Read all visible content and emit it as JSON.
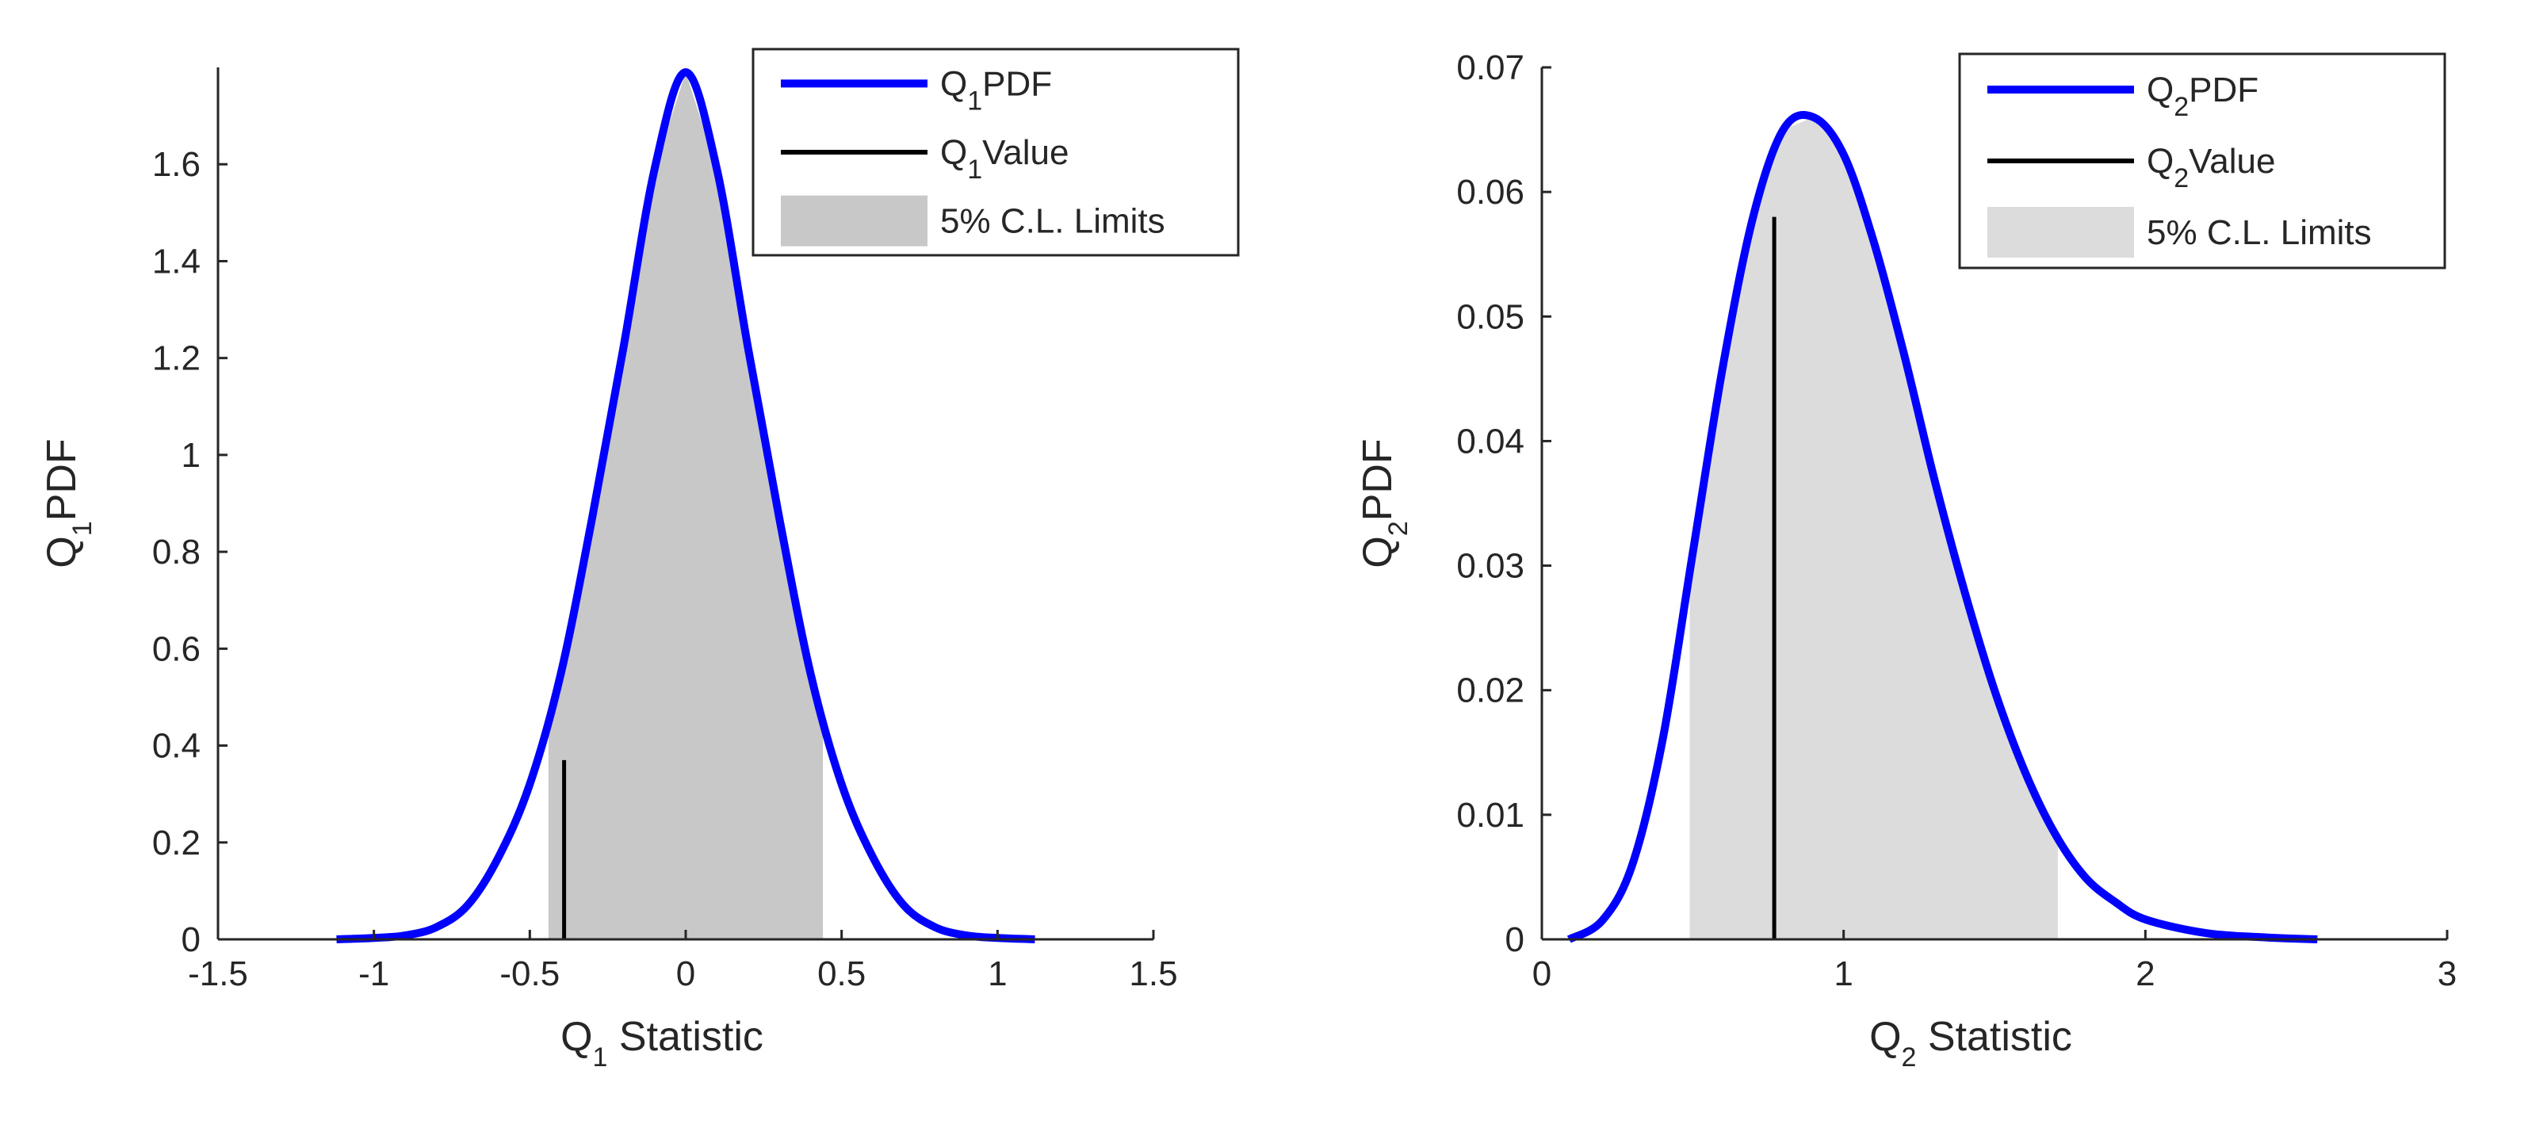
{
  "chart_data": [
    {
      "type": "line",
      "id": "q1",
      "xlabel": {
        "main": "Q",
        "sub": "1",
        "rest": " Statistic"
      },
      "ylabel": {
        "main": "Q",
        "sub": "1",
        "rest": "PDF"
      },
      "xlim": [
        -1.5,
        1.5
      ],
      "ylim": [
        0,
        1.8
      ],
      "xticks": [
        -1.5,
        -1,
        -0.5,
        0,
        0.5,
        1,
        1.5
      ],
      "xtick_labels": [
        "-1.5",
        "-1",
        "-0.5",
        "0",
        "0.5",
        "1",
        "1.5"
      ],
      "yticks": [
        0,
        0.2,
        0.4,
        0.6,
        0.8,
        1,
        1.2,
        1.4,
        1.6
      ],
      "ytick_labels": [
        "0",
        "0.2",
        "0.4",
        "0.6",
        "0.8",
        "1",
        "1.2",
        "1.4",
        "1.6"
      ],
      "pdf": {
        "x": [
          -1.12,
          -1.0,
          -0.9,
          -0.8,
          -0.7,
          -0.6,
          -0.5,
          -0.4,
          -0.3,
          -0.2,
          -0.1,
          0,
          0.1,
          0.2,
          0.3,
          0.4,
          0.5,
          0.6,
          0.7,
          0.8,
          0.9,
          1.0,
          1.12
        ],
        "y": [
          0.0,
          0.003,
          0.008,
          0.025,
          0.07,
          0.17,
          0.32,
          0.55,
          0.87,
          1.22,
          1.59,
          1.79,
          1.59,
          1.22,
          0.87,
          0.55,
          0.32,
          0.17,
          0.07,
          0.025,
          0.008,
          0.003,
          0.0
        ]
      },
      "value_line": {
        "x": -0.39,
        "y": 0.37
      },
      "cl_limits": [
        -0.44,
        0.44
      ],
      "legend": [
        {
          "label_main": "Q",
          "label_sub": "1",
          "label_rest": "PDF",
          "kind": "line",
          "color": "#0000ff"
        },
        {
          "label_main": "Q",
          "label_sub": "1",
          "label_rest": "Value",
          "kind": "line",
          "color": "#000000"
        },
        {
          "label_main": "5% C.L. Limits",
          "label_sub": "",
          "label_rest": "",
          "kind": "patch",
          "color": "#c8c8c8"
        }
      ],
      "legend_position": "top-right",
      "fill_color": "#c8c8c8",
      "pdf_color": "#0000ff",
      "value_color": "#000000"
    },
    {
      "type": "line",
      "id": "q2",
      "xlabel": {
        "main": "Q",
        "sub": "2",
        "rest": " Statistic"
      },
      "ylabel": {
        "main": "Q",
        "sub": "2",
        "rest": "PDF"
      },
      "xlim": [
        0,
        3
      ],
      "ylim": [
        0,
        0.07
      ],
      "xticks": [
        0,
        1,
        2,
        3
      ],
      "xtick_labels": [
        "0",
        "1",
        "2",
        "3"
      ],
      "yticks": [
        0,
        0.01,
        0.02,
        0.03,
        0.04,
        0.05,
        0.06,
        0.07
      ],
      "ytick_labels": [
        "0",
        "0.01",
        "0.02",
        "0.03",
        "0.04",
        "0.05",
        "0.06",
        "0.07"
      ],
      "pdf": {
        "x": [
          0.09,
          0.2,
          0.3,
          0.4,
          0.5,
          0.6,
          0.7,
          0.8,
          0.9,
          1.0,
          1.1,
          1.2,
          1.3,
          1.4,
          1.5,
          1.6,
          1.7,
          1.8,
          1.9,
          2.0,
          2.2,
          2.4,
          2.57
        ],
        "y": [
          0.0,
          0.0015,
          0.006,
          0.016,
          0.031,
          0.046,
          0.058,
          0.065,
          0.066,
          0.063,
          0.056,
          0.047,
          0.037,
          0.028,
          0.02,
          0.0135,
          0.0085,
          0.005,
          0.003,
          0.0016,
          0.0005,
          0.00015,
          0.0
        ]
      },
      "value_line": {
        "x": 0.77,
        "y": 0.058
      },
      "cl_limits": [
        0.49,
        1.71
      ],
      "legend": [
        {
          "label_main": "Q",
          "label_sub": "2",
          "label_rest": "PDF",
          "kind": "line",
          "color": "#0000ff"
        },
        {
          "label_main": "Q",
          "label_sub": "2",
          "label_rest": "Value",
          "kind": "line",
          "color": "#000000"
        },
        {
          "label_main": "5% C.L. Limits",
          "label_sub": "",
          "label_rest": "",
          "kind": "patch",
          "color": "#dcdcdc"
        }
      ],
      "legend_position": "top-right",
      "fill_color": "#dcdcdc",
      "pdf_color": "#0000ff",
      "value_color": "#000000"
    }
  ]
}
